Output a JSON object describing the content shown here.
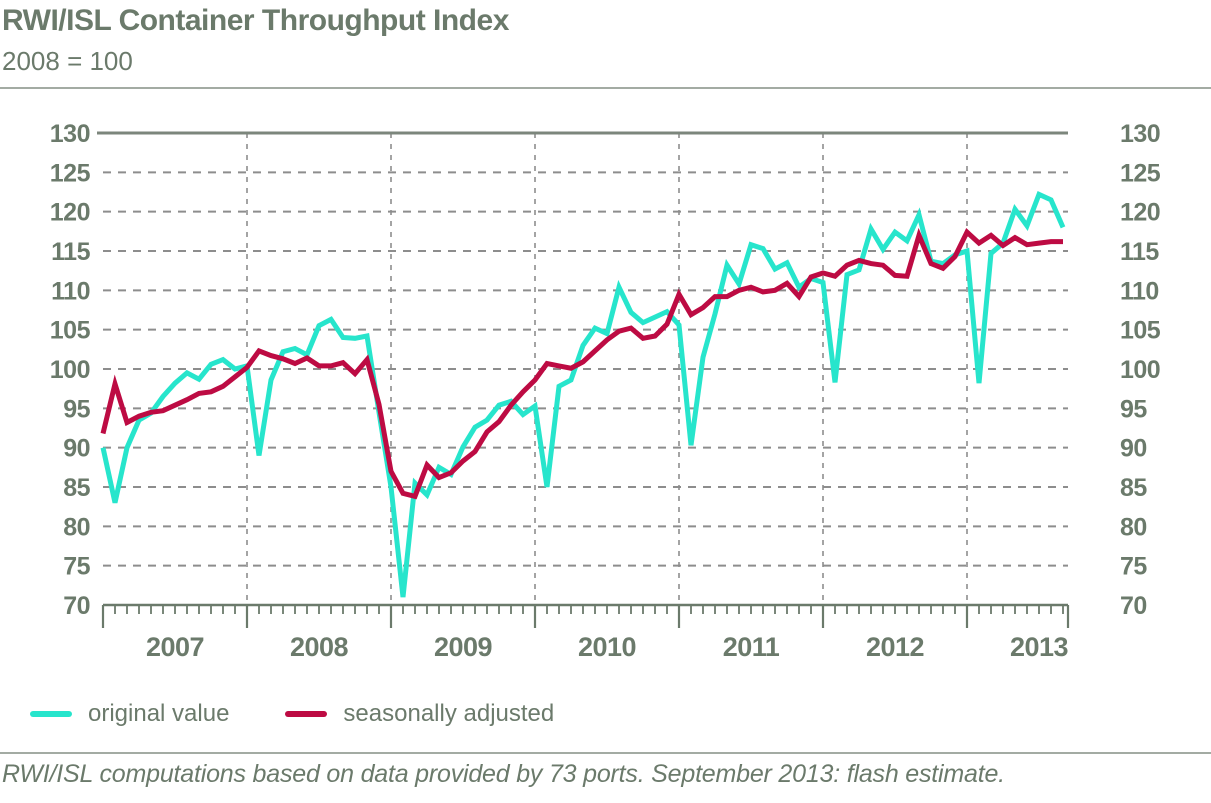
{
  "header": {
    "title": "RWI/ISL Container Throughput Index",
    "subtitle": "2008 = 100"
  },
  "legend": [
    {
      "label": "original value",
      "color": "#27e5cc"
    },
    {
      "label": "seasonally adjusted",
      "color": "#bd0b43"
    }
  ],
  "footer": {
    "note": "RWI/ISL computations based on data provided by 73 ports. September 2013: flash estimate."
  },
  "colors": {
    "text": "#6b7a6b",
    "grid": "#8d8d8d",
    "top_border": "#7c867c",
    "axis": "#6b7a6b",
    "rule": "#a3aba3",
    "original": "#27e5cc",
    "seasonal": "#bd0b43"
  },
  "chart_data": {
    "type": "line",
    "title": "RWI/ISL Container Throughput Index",
    "subtitle": "2008 = 100",
    "frequency": "monthly",
    "x_start": "2007-01",
    "x_end": "2013-09",
    "x_year_labels": [
      "2007",
      "2008",
      "2009",
      "2010",
      "2011",
      "2012",
      "2013"
    ],
    "ylim": [
      70,
      130
    ],
    "ytick_step": 5,
    "ytick_labels": [
      "70",
      "75",
      "80",
      "85",
      "90",
      "95",
      "100",
      "105",
      "110",
      "115",
      "120",
      "125",
      "130"
    ],
    "grid": "horizontal dashed every 5 units; vertical dashed at year boundaries; solid top border; ticked x-axis",
    "legend_position": "below chart",
    "series": [
      {
        "name": "original value",
        "color": "#27e5cc",
        "values": [
          90.0,
          83.0,
          90.0,
          93.5,
          94.4,
          96.5,
          98.2,
          99.5,
          98.7,
          100.6,
          101.2,
          100.0,
          100.4,
          89.0,
          98.6,
          102.2,
          102.6,
          101.8,
          105.5,
          106.3,
          104.0,
          103.9,
          104.2,
          94.5,
          85.0,
          71.0,
          85.5,
          84.0,
          87.5,
          86.6,
          90.1,
          92.6,
          93.5,
          95.4,
          95.9,
          94.2,
          95.3,
          85.0,
          97.8,
          98.6,
          103.0,
          105.2,
          104.5,
          110.4,
          107.2,
          105.9,
          106.6,
          107.3,
          105.6,
          90.3,
          101.5,
          107.0,
          113.2,
          110.8,
          115.8,
          115.3,
          112.7,
          113.5,
          110.4,
          111.5,
          111.0,
          98.3,
          112.0,
          112.6,
          117.8,
          115.2,
          117.4,
          116.3,
          119.6,
          113.7,
          113.4,
          114.5,
          115.0,
          98.2,
          114.7,
          116.0,
          120.3,
          118.2,
          122.2,
          121.5,
          118.0
        ]
      },
      {
        "name": "seasonally adjusted",
        "color": "#bd0b43",
        "values": [
          91.8,
          98.1,
          93.2,
          94.0,
          94.5,
          94.7,
          95.4,
          96.1,
          96.9,
          97.1,
          97.8,
          99.0,
          100.2,
          102.3,
          101.7,
          101.3,
          100.7,
          101.4,
          100.4,
          100.4,
          100.8,
          99.4,
          101.2,
          95.5,
          87.0,
          84.2,
          83.8,
          87.8,
          86.2,
          86.8,
          88.3,
          89.5,
          92.0,
          93.3,
          95.4,
          97.1,
          98.6,
          100.7,
          100.4,
          100.1,
          100.9,
          102.3,
          103.7,
          104.8,
          105.2,
          103.9,
          104.2,
          105.7,
          109.5,
          106.9,
          107.8,
          109.2,
          109.2,
          110.0,
          110.4,
          109.8,
          110.0,
          110.9,
          109.2,
          111.7,
          112.2,
          111.8,
          113.2,
          113.8,
          113.4,
          113.2,
          111.9,
          111.8,
          117.0,
          113.4,
          112.8,
          114.3,
          117.4,
          116.0,
          117.0,
          115.7,
          116.7,
          115.8,
          116.0,
          116.2,
          116.2
        ]
      }
    ]
  }
}
